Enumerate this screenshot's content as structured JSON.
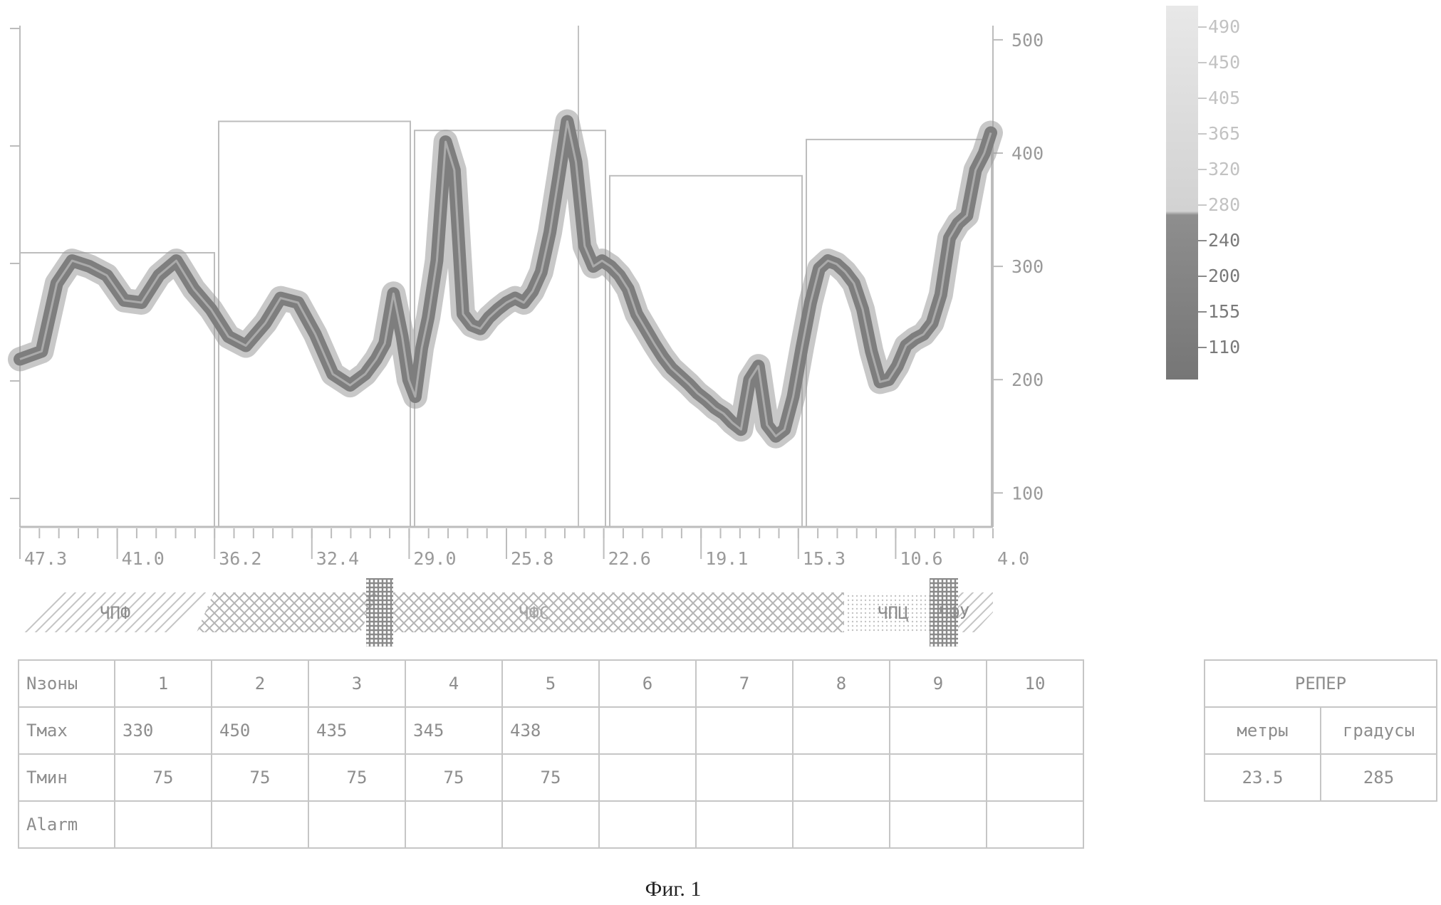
{
  "chart_data": {
    "type": "line",
    "y_axis_side": "right",
    "ylim": [
      70,
      510
    ],
    "y_ticks": [
      "500",
      "400",
      "300",
      "200",
      "100"
    ],
    "y_tick_values": [
      500,
      400,
      300,
      200,
      100
    ],
    "x_tick_labels": [
      "47.3",
      "41.0",
      "36.2",
      "32.4",
      "29.0",
      "25.8",
      "22.6",
      "19.1",
      "15.3",
      "10.6",
      "4.0"
    ],
    "x_range": [
      48.8,
      4.0
    ],
    "x_reversed": true,
    "series": [
      {
        "x": [
          48.8,
          47.8,
          47.1,
          46.4,
          45.6,
          44.8,
          44.0,
          43.2,
          42.4,
          41.6,
          40.8,
          40.0,
          39.2,
          38.4,
          37.5,
          36.8,
          36.0,
          35.2,
          34.4,
          33.6,
          32.9,
          32.4,
          32.0,
          31.6,
          31.2,
          30.9,
          30.6,
          30.3,
          30.0,
          29.6,
          29.2,
          28.8,
          28.4,
          28.0,
          27.6,
          27.2,
          26.8,
          26.4,
          26.0,
          25.6,
          25.2,
          24.8,
          24.4,
          24.0,
          23.6,
          23.2,
          22.8,
          22.4,
          22.0,
          21.6,
          21.2,
          20.8,
          20.4,
          20.0,
          19.6,
          19.2,
          18.8,
          18.4,
          18.0,
          17.6,
          17.2,
          16.8,
          16.4,
          16.0,
          15.6,
          15.2,
          14.8,
          14.4,
          14.0,
          13.6,
          13.2,
          12.8,
          12.4,
          12.0,
          11.6,
          11.2,
          10.8,
          10.4,
          10.0,
          9.6,
          9.2,
          8.8,
          8.4,
          8.0,
          7.6,
          7.2,
          6.8,
          6.4,
          6.0,
          5.6,
          5.2,
          4.8,
          4.4,
          4.1
        ],
        "values": [
          218,
          225,
          285,
          305,
          300,
          292,
          270,
          268,
          292,
          305,
          280,
          262,
          238,
          230,
          250,
          272,
          268,
          240,
          205,
          195,
          205,
          218,
          232,
          276,
          238,
          200,
          185,
          228,
          255,
          305,
          410,
          385,
          258,
          248,
          245,
          255,
          262,
          268,
          272,
          268,
          278,
          295,
          330,
          378,
          428,
          392,
          318,
          300,
          305,
          300,
          292,
          280,
          258,
          245,
          232,
          220,
          210,
          203,
          196,
          188,
          182,
          175,
          170,
          162,
          156,
          200,
          212,
          160,
          150,
          156,
          185,
          228,
          268,
          298,
          305,
          302,
          295,
          285,
          262,
          225,
          198,
          200,
          212,
          230,
          236,
          240,
          250,
          275,
          325,
          338,
          345,
          385,
          400,
          418
        ]
      }
    ],
    "zone_box_tops": [
      312,
      428,
      420,
      380,
      412
    ]
  },
  "legend": {
    "labels": [
      "490",
      "450",
      "405",
      "365",
      "320",
      "280",
      "240",
      "200",
      "155",
      "110"
    ]
  },
  "zones_bar": {
    "labels": [
      "ЧПФ",
      "ЧФС",
      "ЧПЦ",
      "ЧФУ"
    ],
    "colors": {
      "light": "#bdbdbd",
      "cross": "#b0b0b0",
      "dark": "#8c8c8c"
    }
  },
  "zone_table": {
    "row_labels": [
      "Nзоны",
      "Tмax",
      "Tмин",
      "Alarm"
    ],
    "columns": [
      "1",
      "2",
      "3",
      "4",
      "5",
      "6",
      "7",
      "8",
      "9",
      "10"
    ],
    "tmax": [
      "330",
      "450",
      "435",
      "345",
      "438",
      "",
      "",
      "",
      "",
      ""
    ],
    "tmin": [
      "75",
      "75",
      "75",
      "75",
      "75",
      "",
      "",
      "",
      "",
      ""
    ],
    "alarm": [
      "",
      "",
      "",
      "",
      "",
      "",
      "",
      "",
      "",
      ""
    ]
  },
  "reference_table": {
    "title": "РЕПЕР",
    "headers": [
      "метры",
      "градусы"
    ],
    "values": [
      "23.5",
      "285"
    ]
  },
  "caption": "Фиг. 1",
  "colors": {
    "trace": "#7e7e7e",
    "frame": "#bcbcbc",
    "gradient_top": "#e8e8e8",
    "gradient_bottom": "#767676"
  }
}
